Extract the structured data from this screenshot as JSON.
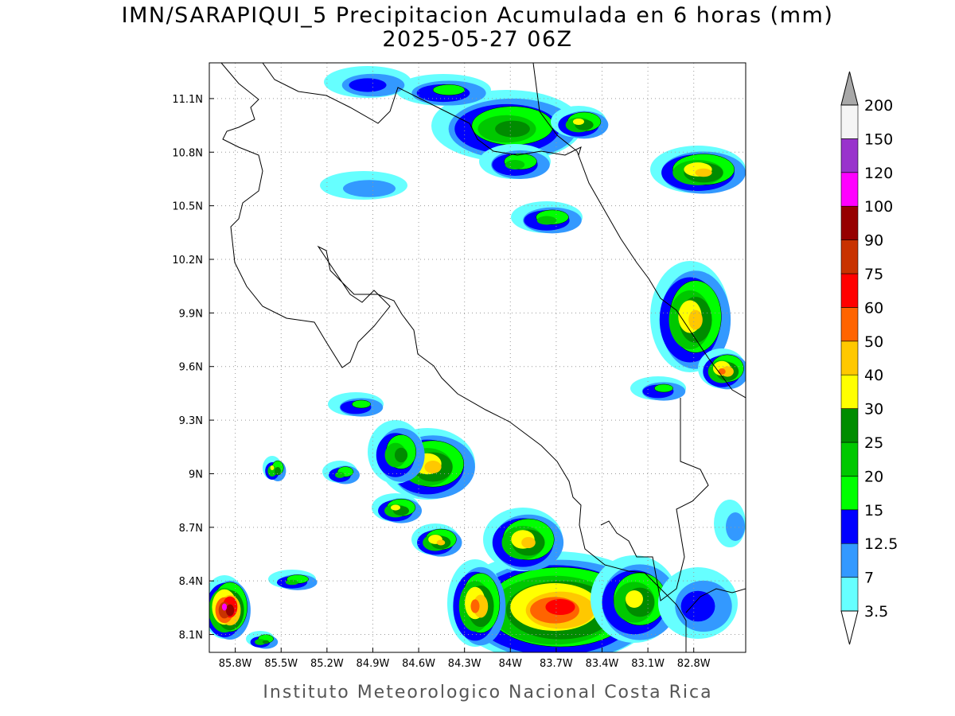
{
  "title": "IMN/SARAPIQUI_5 Precipitacion Acumulada en 6 horas (mm)",
  "subtitle": "2025-05-27 06Z",
  "footer": "Instituto Meteorologico Nacional Costa Rica",
  "map": {
    "lonlim": [
      -85.97,
      -82.46
    ],
    "latlim": [
      8.0,
      11.3
    ],
    "grid": true,
    "lon_ticks": [
      {
        "value": -85.8,
        "label": "85.8W"
      },
      {
        "value": -85.5,
        "label": "85.5W"
      },
      {
        "value": -85.2,
        "label": "85.2W"
      },
      {
        "value": -84.9,
        "label": "84.9W"
      },
      {
        "value": -84.6,
        "label": "84.6W"
      },
      {
        "value": -84.3,
        "label": "84.3W"
      },
      {
        "value": -84.0,
        "label": "84W"
      },
      {
        "value": -83.7,
        "label": "83.7W"
      },
      {
        "value": -83.4,
        "label": "83.4W"
      },
      {
        "value": -83.1,
        "label": "83.1W"
      },
      {
        "value": -82.8,
        "label": "82.8W"
      }
    ],
    "lat_ticks": [
      {
        "value": 8.1,
        "label": "8.1N"
      },
      {
        "value": 8.4,
        "label": "8.4N"
      },
      {
        "value": 8.7,
        "label": "8.7N"
      },
      {
        "value": 9.0,
        "label": "9N"
      },
      {
        "value": 9.3,
        "label": "9.3N"
      },
      {
        "value": 9.6,
        "label": "9.6N"
      },
      {
        "value": 9.9,
        "label": "9.9N"
      },
      {
        "value": 10.2,
        "label": "10.2N"
      },
      {
        "value": 10.5,
        "label": "10.5N"
      },
      {
        "value": 10.8,
        "label": "10.8N"
      },
      {
        "value": 11.1,
        "label": "11.1N"
      }
    ]
  },
  "colorbar": {
    "levels": [
      3.5,
      7,
      12.5,
      15,
      20,
      25,
      30,
      40,
      50,
      60,
      75,
      90,
      100,
      120,
      150,
      200
    ],
    "colors": [
      "#66ffff",
      "#3399ff",
      "#0000ff",
      "#00ff00",
      "#00c800",
      "#008c00",
      "#ffff00",
      "#ffc800",
      "#ff6400",
      "#ff0000",
      "#c83200",
      "#960000",
      "#ff00ff",
      "#9933cc",
      "#f5f5f5"
    ],
    "under_color": "#ffffff",
    "over_color": "#a8a8a8"
  }
}
